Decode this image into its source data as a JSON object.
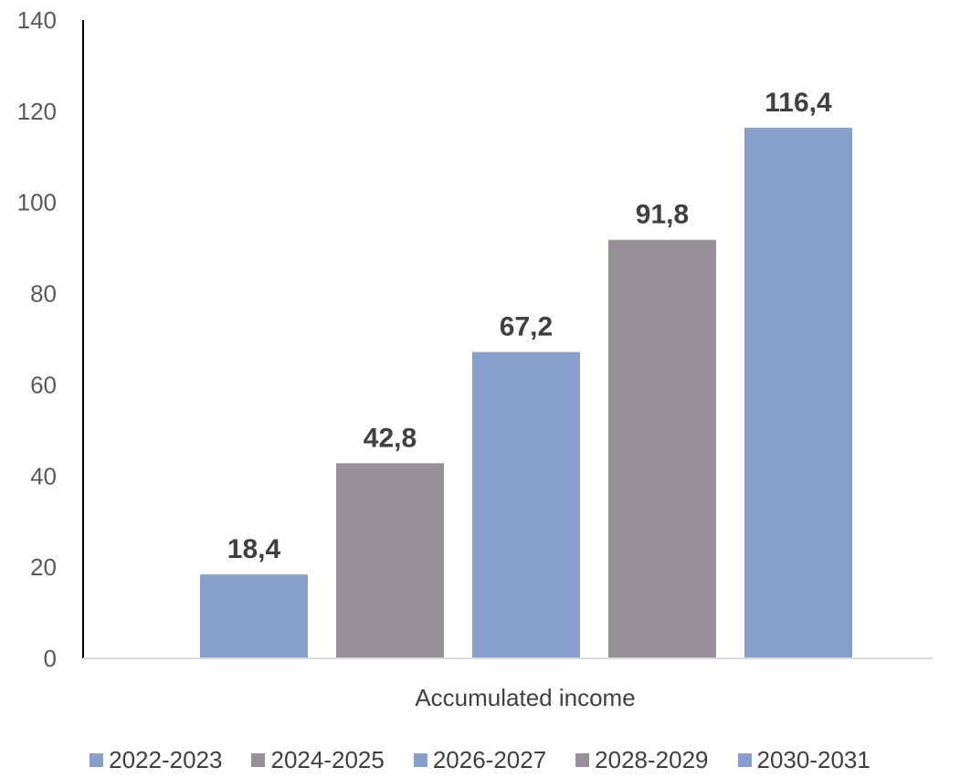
{
  "chart_data": {
    "type": "bar",
    "categories": [
      "Accumulated income"
    ],
    "series": [
      {
        "name": "2022-2023",
        "values": [
          18.4
        ],
        "label": "18,4",
        "color": "#869fcc"
      },
      {
        "name": "2024-2025",
        "values": [
          42.8
        ],
        "label": "42,8",
        "color": "#979099"
      },
      {
        "name": "2026-2027",
        "values": [
          67.2
        ],
        "label": "67,2",
        "color": "#869fcc"
      },
      {
        "name": "2028-2029",
        "values": [
          91.8
        ],
        "label": "91,8",
        "color": "#979099"
      },
      {
        "name": "2030-2031",
        "values": [
          116.4
        ],
        "label": "116,4",
        "color": "#869fcc"
      }
    ],
    "ylim": [
      0,
      140
    ],
    "yticks": [
      "0",
      "20",
      "40",
      "60",
      "80",
      "100",
      "120",
      "140"
    ],
    "grid": false,
    "legend_position": "bottom"
  }
}
